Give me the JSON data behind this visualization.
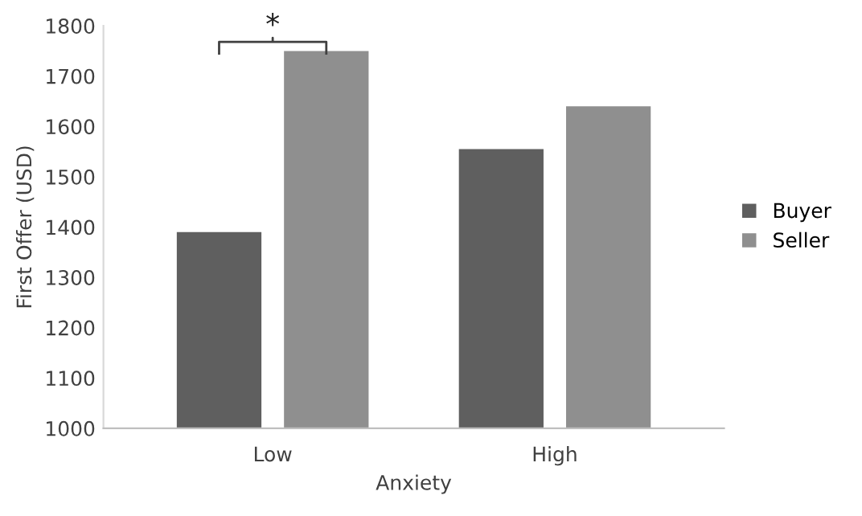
{
  "chart_data": {
    "type": "bar",
    "xlabel": "Anxiety",
    "ylabel": "First Offer (USD)",
    "categories": [
      "Low",
      "High"
    ],
    "series": [
      {
        "name": "Buyer",
        "color": "#5f5f5f",
        "values": [
          1390,
          1555
        ]
      },
      {
        "name": "Seller",
        "color": "#8f8f8f",
        "values": [
          1750,
          1640
        ]
      }
    ],
    "ylim": [
      1000,
      1800
    ],
    "yticks": [
      1000,
      1100,
      1200,
      1300,
      1400,
      1500,
      1600,
      1700,
      1800
    ],
    "annotations": [
      "*"
    ],
    "legend": "right",
    "grid": false
  }
}
